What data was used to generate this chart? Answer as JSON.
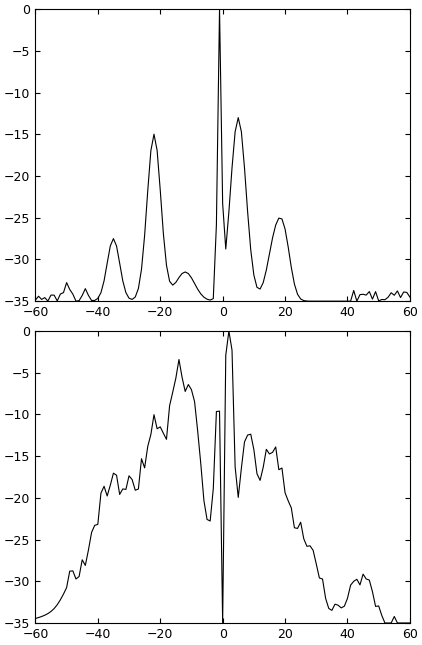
{
  "xlim": [
    -60,
    60
  ],
  "ylim": [
    -35,
    0
  ],
  "xticks": [
    -60,
    -40,
    -20,
    0,
    20,
    40,
    60
  ],
  "yticks": [
    0,
    -5,
    -10,
    -15,
    -20,
    -25,
    -30,
    -35
  ],
  "figsize": [
    4.22,
    6.45
  ],
  "dpi": 100,
  "linecolor": "#000000",
  "linewidth": 0.8,
  "bg_color": "#ffffff"
}
